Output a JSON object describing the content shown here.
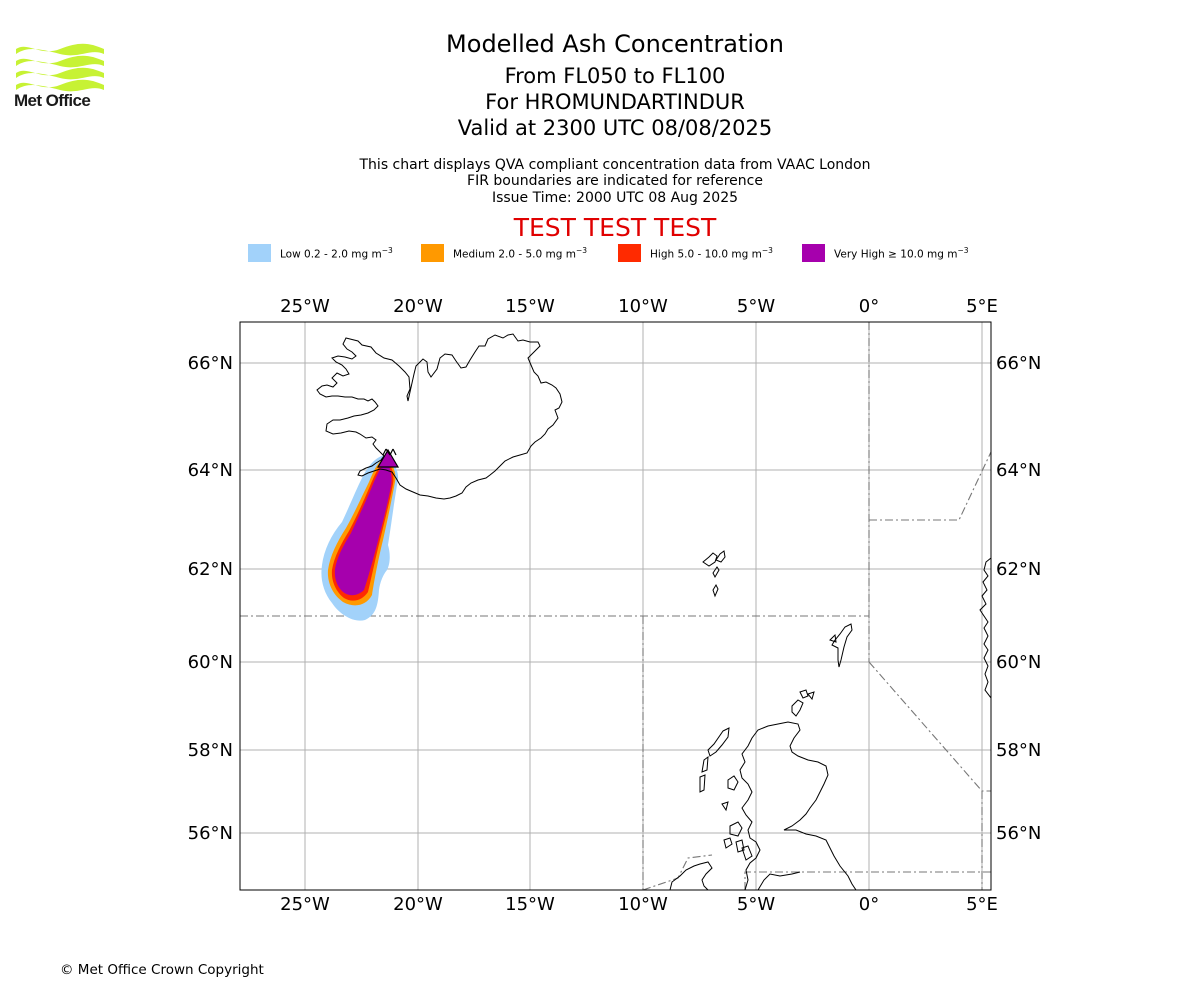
{
  "logo": {
    "brand": "Met Office",
    "brand_color": "#c7f234"
  },
  "header": {
    "title": "Modelled Ash Concentration",
    "flight_levels": "From FL050 to FL100",
    "volcano": "For HROMUNDARTINDUR",
    "valid_time": "Valid at 2300 UTC 08/08/2025",
    "note_line1": "This chart displays QVA compliant concentration data from VAAC London",
    "note_line2": "FIR boundaries are indicated for reference",
    "issue_time": "Issue Time: 2000 UTC 08 Aug 2025",
    "test_banner": "TEST TEST TEST",
    "test_color": "#e00000"
  },
  "legend": [
    {
      "label": "Low 0.2 - 2.0 mg m",
      "exp": "−3",
      "color": "#a2d2fa"
    },
    {
      "label": "Medium 2.0 - 5.0 mg m",
      "exp": "−3",
      "color": "#ff9900"
    },
    {
      "label": "High 5.0 - 10.0 mg m",
      "exp": "−3",
      "color": "#ff2a00"
    },
    {
      "label": "Very High  ≥  10.0 mg m",
      "exp": "−3",
      "color": "#a600ad"
    }
  ],
  "map": {
    "lon_range": [
      -28,
      5.5
    ],
    "lat_range": [
      54.8,
      66.8
    ],
    "lon_ticks": [
      "25°W",
      "20°W",
      "15°W",
      "10°W",
      "5°W",
      "0°",
      "5°E"
    ],
    "lat_ticks": [
      "66°N",
      "64°N",
      "62°N",
      "60°N",
      "58°N",
      "56°N"
    ],
    "volcano_marker": "volcano-triangle"
  },
  "footer": {
    "copyright": "© Met Office Crown Copyright"
  }
}
